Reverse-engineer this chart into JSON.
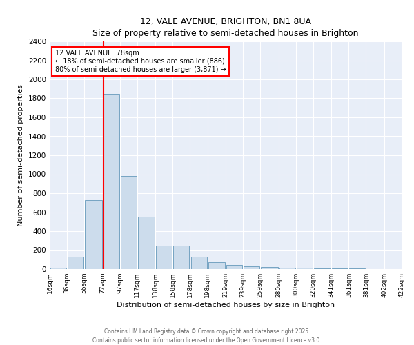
{
  "title": "12, VALE AVENUE, BRIGHTON, BN1 8UA",
  "subtitle": "Size of property relative to semi-detached houses in Brighton",
  "xlabel": "Distribution of semi-detached houses by size in Brighton",
  "ylabel": "Number of semi-detached properties",
  "bar_color": "#ccdcec",
  "bar_edge_color": "#6699bb",
  "background_color": "#e8eef8",
  "grid_color": "#ffffff",
  "red_line_x": 78,
  "annotation_text": "12 VALE AVENUE: 78sqm\n← 18% of semi-detached houses are smaller (886)\n80% of semi-detached houses are larger (3,871) →",
  "footer": "Contains HM Land Registry data © Crown copyright and database right 2025.\nContains public sector information licensed under the Open Government Licence v3.0.",
  "bins": [
    16,
    36,
    56,
    77,
    97,
    117,
    138,
    158,
    178,
    198,
    219,
    239,
    259,
    280,
    300,
    320,
    341,
    361,
    381,
    402,
    422
  ],
  "bin_labels": [
    "16sqm",
    "36sqm",
    "56sqm",
    "77sqm",
    "97sqm",
    "117sqm",
    "138sqm",
    "158sqm",
    "178sqm",
    "198sqm",
    "219sqm",
    "239sqm",
    "259sqm",
    "280sqm",
    "300sqm",
    "320sqm",
    "341sqm",
    "361sqm",
    "381sqm",
    "402sqm",
    "422sqm"
  ],
  "counts": [
    15,
    130,
    730,
    1850,
    980,
    550,
    250,
    250,
    130,
    70,
    45,
    30,
    25,
    18,
    12,
    8,
    5,
    4,
    3,
    2
  ],
  "ylim": [
    0,
    2400
  ],
  "yticks": [
    0,
    200,
    400,
    600,
    800,
    1000,
    1200,
    1400,
    1600,
    1800,
    2000,
    2200,
    2400
  ]
}
